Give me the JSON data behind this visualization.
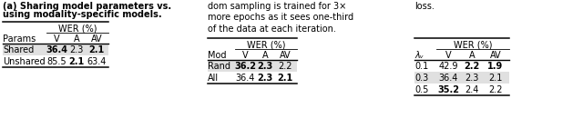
{
  "table_a": {
    "caption_bold": "(a) Sharing model parameters vs.",
    "caption_normal": "using modality-specific models.",
    "col_header_1": "Params",
    "col_header_2": "WER (%)",
    "sub_headers": [
      "V",
      "A",
      "AV"
    ],
    "rows": [
      {
        "label": "Shared",
        "V": "36.4",
        "A": "2.3",
        "AV": "2.1",
        "bold": [
          true,
          false,
          true
        ],
        "highlight": true
      },
      {
        "label": "Unshared",
        "V": "85.5",
        "A": "2.1",
        "AV": "63.4",
        "bold": [
          false,
          true,
          false
        ],
        "highlight": false
      }
    ]
  },
  "table_b": {
    "text_above": "dom sampling is trained for 3×\nmore epochs as it sees one-third\nof the data at each iteration.",
    "col_header_1": "Mod",
    "col_header_2": "WER (%)",
    "sub_headers": [
      "V",
      "A",
      "AV"
    ],
    "rows": [
      {
        "label": "Rand",
        "V": "36.2",
        "A": "2.3",
        "AV": "2.2",
        "bold": [
          true,
          true,
          false
        ],
        "highlight": true
      },
      {
        "label": "All",
        "V": "36.4",
        "A": "2.3",
        "AV": "2.1",
        "bold": [
          false,
          true,
          true
        ],
        "highlight": false
      }
    ]
  },
  "table_c": {
    "text_above": "loss.",
    "col_header_1": "λᵥ",
    "col_header_2": "WER (%)",
    "sub_headers": [
      "V",
      "A",
      "AV"
    ],
    "rows": [
      {
        "label": "0.1",
        "V": "42.9",
        "A": "2.2",
        "AV": "1.9",
        "bold": [
          false,
          true,
          true
        ],
        "highlight": false
      },
      {
        "label": "0.3",
        "V": "36.4",
        "A": "2.3",
        "AV": "2.1",
        "bold": [
          false,
          false,
          false
        ],
        "highlight": true
      },
      {
        "label": "0.5",
        "V": "35.2",
        "A": "2.4",
        "AV": "2.2",
        "bold": [
          true,
          false,
          false
        ],
        "highlight": false
      }
    ]
  },
  "highlight_color": "#e0e0e0",
  "fontsize": 7.0,
  "bg_color": "white"
}
